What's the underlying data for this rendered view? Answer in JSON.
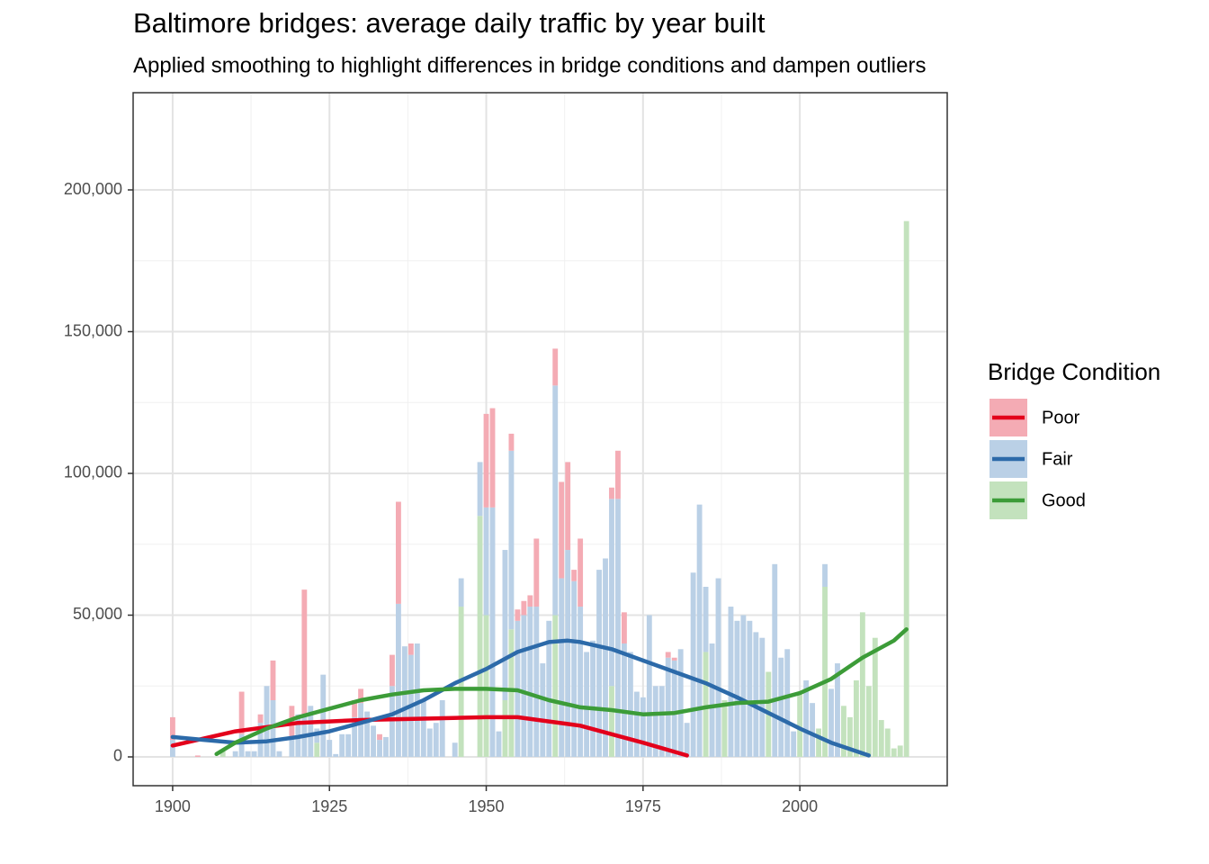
{
  "chart_data": {
    "type": "bar",
    "stacked": true,
    "title": "Baltimore bridges: average daily traffic by year built",
    "subtitle": "Applied smoothing to highlight differences in bridge conditions and dampen outliers",
    "legend_title": "Bridge Condition",
    "legend_position": "right",
    "grid": true,
    "xlim": [
      1893.7,
      2023.5
    ],
    "xticks": [
      1900,
      1925,
      1950,
      1975,
      2000
    ],
    "ylim": [
      -10159,
      234286
    ],
    "yticks": [
      0,
      {
        "value": 50000,
        "label": "50,000"
      },
      {
        "value": 100000,
        "label": "100,000"
      },
      {
        "value": 150000,
        "label": "150,000"
      },
      {
        "value": 200000,
        "label": "200,000"
      }
    ],
    "x": [
      1900,
      1904,
      1908,
      1910,
      1911,
      1912,
      1913,
      1914,
      1915,
      1916,
      1917,
      1919,
      1920,
      1921,
      1922,
      1923,
      1924,
      1925,
      1926,
      1927,
      1928,
      1929,
      1930,
      1931,
      1932,
      1933,
      1934,
      1935,
      1936,
      1937,
      1938,
      1939,
      1940,
      1941,
      1942,
      1943,
      1945,
      1946,
      1949,
      1950,
      1951,
      1952,
      1953,
      1954,
      1955,
      1956,
      1957,
      1958,
      1959,
      1960,
      1961,
      1962,
      1963,
      1964,
      1965,
      1966,
      1967,
      1968,
      1969,
      1970,
      1971,
      1972,
      1973,
      1974,
      1975,
      1976,
      1977,
      1978,
      1979,
      1980,
      1981,
      1982,
      1983,
      1984,
      1985,
      1986,
      1987,
      1988,
      1989,
      1990,
      1991,
      1992,
      1993,
      1994,
      1995,
      1996,
      1997,
      1998,
      1999,
      2000,
      2001,
      2002,
      2003,
      2004,
      2005,
      2006,
      2007,
      2008,
      2009,
      2010,
      2011,
      2012,
      2013,
      2014,
      2015,
      2016,
      2017
    ],
    "series": [
      {
        "name": "Poor",
        "color": "#f4abb4",
        "line_color": "#e3001b",
        "values": [
          8000,
          500,
          null,
          null,
          15000,
          null,
          null,
          3000,
          null,
          14000,
          null,
          11000,
          null,
          44000,
          null,
          null,
          null,
          null,
          null,
          null,
          null,
          6000,
          5000,
          null,
          null,
          2000,
          null,
          11000,
          36000,
          null,
          4000,
          null,
          null,
          null,
          null,
          null,
          null,
          null,
          null,
          33000,
          35000,
          null,
          null,
          6000,
          4000,
          5000,
          4000,
          24000,
          null,
          null,
          13000,
          34000,
          31000,
          4000,
          24000,
          null,
          null,
          null,
          null,
          4000,
          17000,
          11000,
          null,
          null,
          null,
          null,
          null,
          null,
          2000,
          1000,
          null,
          null,
          null,
          null,
          null,
          null,
          null,
          null,
          null,
          null,
          null,
          null,
          null,
          null,
          null,
          null,
          null,
          null,
          null,
          null,
          null,
          null,
          null,
          null,
          null,
          null,
          null,
          null,
          null,
          null,
          null,
          null,
          null,
          null,
          null,
          null,
          null
        ],
        "smooth": {
          "x": [
            1900,
            1910,
            1920,
            1930,
            1940,
            1950,
            1955,
            1960,
            1965,
            1970,
            1975,
            1982
          ],
          "values": [
            4000,
            9000,
            12000,
            13000,
            13500,
            14000,
            14000,
            12500,
            11000,
            8000,
            5000,
            500
          ]
        }
      },
      {
        "name": "Fair",
        "color": "#bad0e6",
        "line_color": "#2c6aa9",
        "values": [
          6000,
          null,
          null,
          2000,
          8000,
          2000,
          2000,
          12000,
          25000,
          20000,
          2000,
          7000,
          15000,
          15000,
          18000,
          5000,
          29000,
          6000,
          1000,
          8000,
          8000,
          14000,
          19000,
          16000,
          11000,
          6000,
          7000,
          25000,
          54000,
          39000,
          36000,
          40000,
          20000,
          10000,
          12000,
          20000,
          5000,
          10000,
          19000,
          38000,
          88000,
          9000,
          53000,
          63000,
          48000,
          50000,
          53000,
          53000,
          33000,
          48000,
          81000,
          63000,
          73000,
          62000,
          53000,
          37000,
          41000,
          66000,
          70000,
          66000,
          91000,
          40000,
          37000,
          23000,
          21000,
          50000,
          25000,
          25000,
          35000,
          34000,
          38000,
          12000,
          65000,
          89000,
          23000,
          40000,
          63000,
          null,
          53000,
          48000,
          50000,
          48000,
          44000,
          42000,
          null,
          68000,
          35000,
          38000,
          9000,
          null,
          27000,
          19000,
          null,
          8000,
          24000,
          33000,
          null,
          null,
          null,
          null,
          null,
          null,
          null,
          null,
          null,
          null,
          null
        ],
        "smooth": {
          "x": [
            1900,
            1905,
            1910,
            1915,
            1920,
            1925,
            1930,
            1935,
            1940,
            1945,
            1950,
            1955,
            1960,
            1963,
            1965,
            1970,
            1975,
            1980,
            1985,
            1990,
            1995,
            2000,
            2005,
            2011
          ],
          "values": [
            7000,
            6000,
            5000,
            5500,
            7000,
            9000,
            12000,
            15000,
            20000,
            26000,
            31000,
            37000,
            40500,
            41000,
            40500,
            38000,
            34000,
            30000,
            26000,
            21000,
            15500,
            10000,
            5000,
            500
          ]
        }
      },
      {
        "name": "Good",
        "color": "#c3e2bd",
        "line_color": "#3c9c38",
        "values": [
          null,
          null,
          2000,
          null,
          null,
          null,
          null,
          null,
          null,
          null,
          null,
          null,
          null,
          null,
          null,
          5000,
          null,
          null,
          null,
          null,
          null,
          null,
          null,
          null,
          null,
          null,
          null,
          null,
          null,
          null,
          null,
          null,
          null,
          null,
          null,
          null,
          null,
          53000,
          85000,
          50000,
          null,
          null,
          20000,
          45000,
          null,
          null,
          null,
          null,
          null,
          null,
          50000,
          null,
          null,
          null,
          null,
          null,
          null,
          null,
          null,
          25000,
          null,
          null,
          null,
          null,
          null,
          null,
          null,
          null,
          null,
          null,
          null,
          null,
          null,
          null,
          37000,
          null,
          null,
          20000,
          null,
          null,
          null,
          null,
          null,
          null,
          30000,
          null,
          null,
          null,
          null,
          22000,
          null,
          null,
          10000,
          60000,
          null,
          null,
          18000,
          14000,
          27000,
          51000,
          25000,
          42000,
          13000,
          10000,
          3000,
          4000,
          189000
        ],
        "smooth": {
          "x": [
            1907,
            1910,
            1915,
            1920,
            1925,
            1930,
            1935,
            1940,
            1945,
            1950,
            1955,
            1960,
            1965,
            1970,
            1975,
            1980,
            1985,
            1990,
            1995,
            2000,
            2005,
            2010,
            2015,
            2017
          ],
          "values": [
            1000,
            5000,
            10000,
            14000,
            17000,
            20000,
            22000,
            23500,
            24000,
            24000,
            23500,
            20000,
            17500,
            16500,
            15000,
            15500,
            17500,
            19000,
            19500,
            22500,
            27500,
            35000,
            41000,
            45000
          ]
        }
      }
    ]
  }
}
